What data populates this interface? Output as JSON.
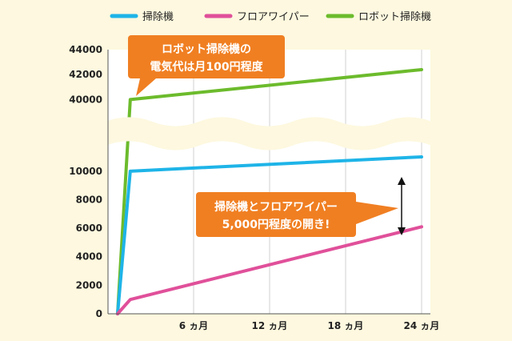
{
  "chart_data": {
    "type": "line",
    "x_ticks": [
      {
        "value": 6,
        "label": "6 ヵ月"
      },
      {
        "value": 12,
        "label": "12 ヵ月"
      },
      {
        "value": 18,
        "label": "18 ヵ月"
      },
      {
        "value": 24,
        "label": "24 ヵ月"
      }
    ],
    "y_ticks_lower": [
      0,
      2000,
      4000,
      6000,
      8000,
      10000
    ],
    "y_ticks_upper": [
      40000,
      42000,
      44000
    ],
    "xlim": [
      0,
      24
    ],
    "ylim_lower": [
      0,
      11000
    ],
    "ylim_upper": [
      39000,
      44000
    ],
    "axis_break": true,
    "grid": "vertical",
    "legend_position": "top-right",
    "series": [
      {
        "name": "掃除機",
        "color": "#1eb4e8",
        "x": [
          0,
          1,
          24
        ],
        "y": [
          0,
          10000,
          11000
        ]
      },
      {
        "name": "フロアワイパー",
        "color": "#e0509a",
        "x": [
          0,
          1,
          24
        ],
        "y": [
          0,
          1000,
          6100
        ]
      },
      {
        "name": "ロボット掃除機",
        "color": "#6cbb2c",
        "x": [
          0,
          1,
          24
        ],
        "y": [
          0,
          40000,
          42400
        ]
      }
    ],
    "annotations": [
      {
        "lines": [
          "ロボット掃除機の",
          "電気代は月100円程度"
        ],
        "color": "#f07f22"
      },
      {
        "lines": [
          "掃除機とフロアワイパー",
          "5,000円程度の開き!"
        ],
        "color": "#f07f22"
      }
    ]
  }
}
